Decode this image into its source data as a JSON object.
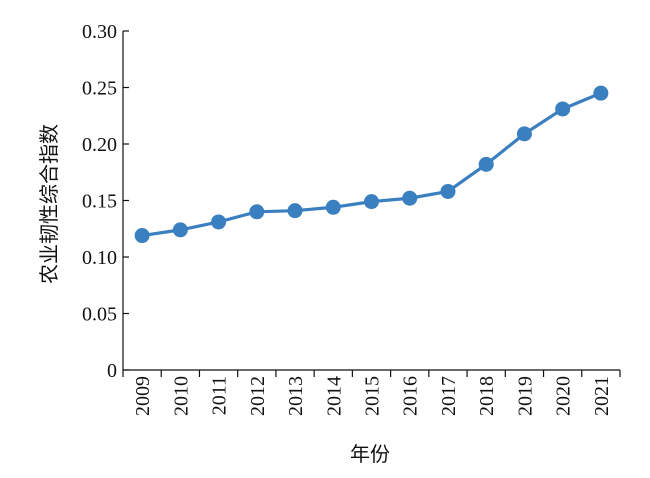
{
  "chart_data": {
    "type": "line",
    "xlabel": "年份",
    "ylabel": "农业韧性综合指数",
    "categories": [
      "2009",
      "2010",
      "2011",
      "2012",
      "2013",
      "2014",
      "2015",
      "2016",
      "2017",
      "2018",
      "2019",
      "2020",
      "2021"
    ],
    "series": [
      {
        "values": [
          0.119,
          0.124,
          0.131,
          0.14,
          0.141,
          0.144,
          0.149,
          0.152,
          0.158,
          0.182,
          0.209,
          0.231,
          0.245
        ],
        "color": "#3a7fbf"
      }
    ],
    "ylim": [
      0,
      0.3
    ],
    "yticks": [
      "0",
      "0.05",
      "0.10",
      "0.15",
      "0.20",
      "0.25",
      "0.30"
    ],
    "grid": false,
    "legend": "none"
  }
}
